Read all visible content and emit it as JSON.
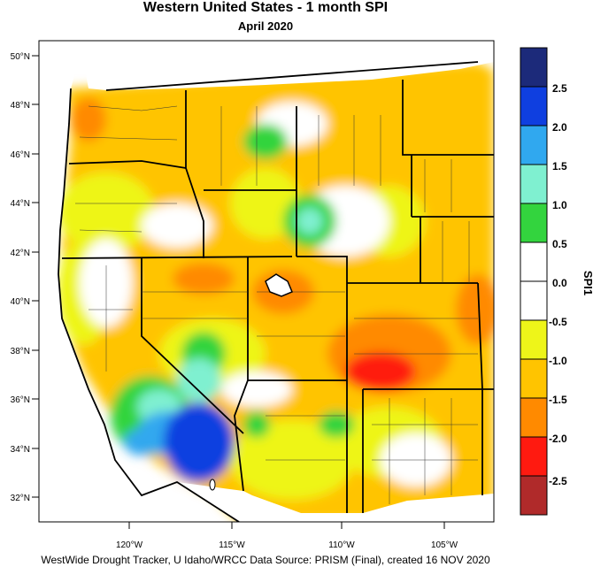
{
  "title": "Western United States - 1 month SPI",
  "subtitle": "April 2020",
  "credit": "WestWide Drought Tracker, U Idaho/WRCC Data Source: PRISM (Final), created 16 NOV 2020",
  "lat_labels": [
    "50°N",
    "48°N",
    "46°N",
    "44°N",
    "42°N",
    "40°N",
    "38°N",
    "36°N",
    "34°N",
    "32°N"
  ],
  "lon_labels": [
    "120°W",
    "115°W",
    "110°W",
    "105°W"
  ],
  "legend": {
    "label": "SPI1",
    "ticks": [
      "2.5",
      "2.0",
      "1.5",
      "1.0",
      "0.5",
      "0.0",
      "-0.5",
      "-1.0",
      "-1.5",
      "-2.0",
      "-2.5"
    ],
    "colors_top_to_bottom": [
      "#1c2a7a",
      "#0f3fe0",
      "#30a8ef",
      "#7ff0d0",
      "#33d43e",
      "#ffffff",
      "#ffffff",
      "#eef519",
      "#ffc400",
      "#ff8a00",
      "#ff1a10",
      "#b02a2a"
    ]
  }
}
